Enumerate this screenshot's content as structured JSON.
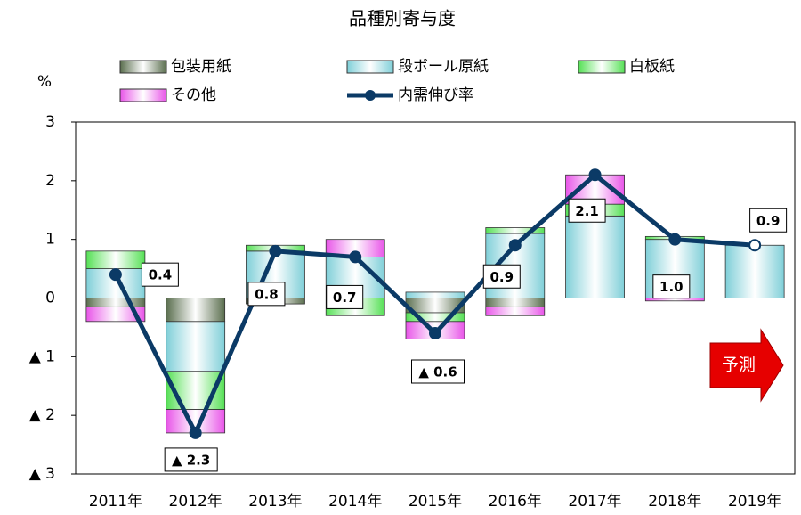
{
  "chart_data": {
    "type": "bar",
    "title": "品種別寄与度",
    "y_axis_label": "%",
    "categories": [
      "2011年",
      "2012年",
      "2013年",
      "2014年",
      "2015年",
      "2016年",
      "2017年",
      "2018年",
      "2019年"
    ],
    "series": [
      {
        "name": "包装用紙",
        "color": "#5a6e4e",
        "values": [
          -0.15,
          -0.4,
          -0.1,
          0,
          -0.25,
          -0.15,
          0,
          0,
          0
        ]
      },
      {
        "name": "段ボール原紙",
        "color": "#7fcfd8",
        "values": [
          0.5,
          -0.85,
          0.8,
          0.7,
          0.1,
          1.1,
          1.4,
          1.0,
          0.9
        ]
      },
      {
        "name": "白板紙",
        "color": "#55e055",
        "values": [
          0.3,
          -0.65,
          0.1,
          -0.3,
          -0.15,
          0.1,
          0.2,
          0.05,
          0
        ]
      },
      {
        "name": "その他",
        "color": "#e855e8",
        "values": [
          -0.25,
          -0.4,
          0,
          0.3,
          -0.3,
          -0.15,
          0.5,
          -0.05,
          0
        ]
      },
      {
        "name": "内需伸び率",
        "type": "line",
        "color": "#0b3a66",
        "values": [
          0.4,
          -2.3,
          0.8,
          0.7,
          -0.6,
          0.9,
          2.1,
          1.0,
          0.9
        ],
        "value_labels": [
          "0.4",
          "▲ 2.3",
          "0.8",
          "0.7",
          "▲ 0.6",
          "0.9",
          "2.1",
          "1.0",
          "0.9"
        ]
      }
    ],
    "ylim": [
      -3,
      3
    ],
    "yticks": [
      {
        "value": -3,
        "label": "▲ 3"
      },
      {
        "value": -2,
        "label": "▲ 2"
      },
      {
        "value": -1,
        "label": "▲ 1"
      },
      0,
      1,
      2,
      3
    ],
    "annotation": "予測",
    "legend": "top"
  }
}
